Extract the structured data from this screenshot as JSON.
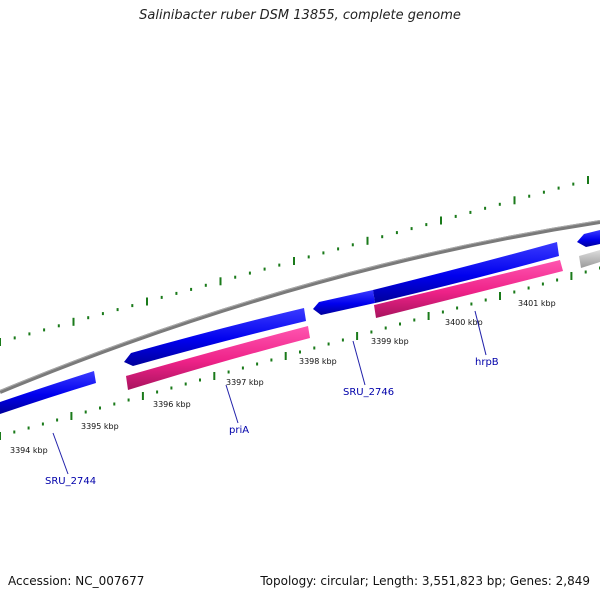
{
  "title": "Salinibacter ruber DSM 13855, complete genome",
  "footer": {
    "accession": "Accession: NC_007677",
    "summary": "Topology: circular; Length: 3,551,823 bp; Genes: 2,849"
  },
  "ticks": [
    "3394 kbp",
    "3395 kbp",
    "3396 kbp",
    "3397 kbp",
    "3398 kbp",
    "3399 kbp",
    "3400 kbp",
    "3401 kbp"
  ],
  "gene_labels": [
    "SRU_2744",
    "priA",
    "SRU_2746",
    "hrpB"
  ],
  "colors": {
    "backbone": "#888888",
    "cds": "#0000ee",
    "gene": "#ee2288",
    "other": "#bbbbbb",
    "ticks": "#1a7a1a",
    "label": "#0000aa"
  }
}
